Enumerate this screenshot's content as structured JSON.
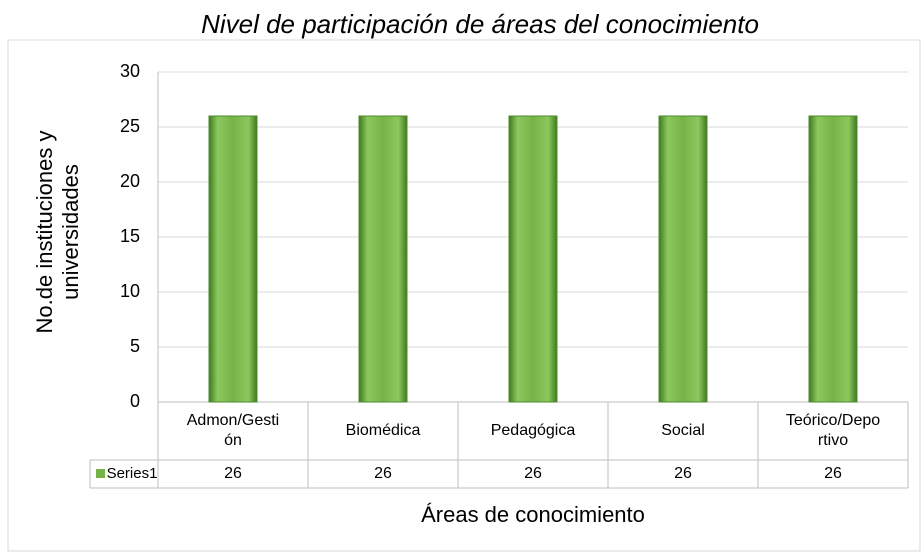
{
  "chart_data": {
    "type": "bar",
    "title": "Nivel de participación de áreas del conocimiento",
    "x_label": "Áreas de conocimiento",
    "y_label": "No.de instituciones y universidades",
    "categories": [
      "Admon/Gestión",
      "Biomédica",
      "Pedagógica",
      "Social",
      "Teórico/Deportivo"
    ],
    "series": [
      {
        "name": "Series1",
        "color": "#76b347",
        "values": [
          26,
          26,
          26,
          26,
          26
        ]
      }
    ],
    "ylim": [
      0,
      30
    ],
    "yticks": [
      0,
      5,
      10,
      15,
      20,
      25,
      30
    ],
    "grid": true,
    "data_table": true
  }
}
